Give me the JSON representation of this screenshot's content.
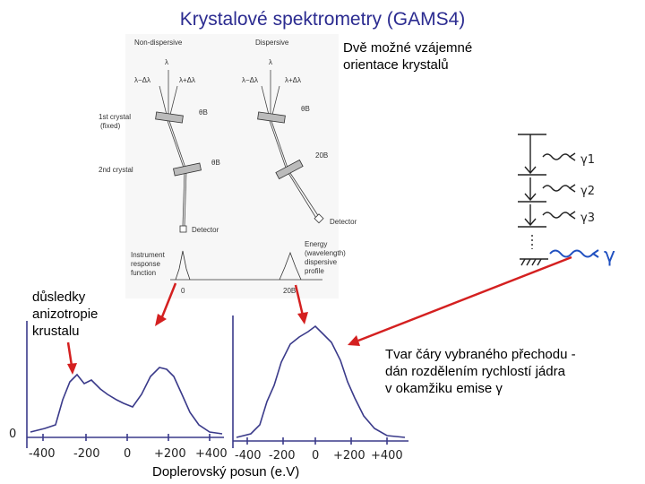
{
  "title": "Krystalové spektrometry (GAMS4)",
  "orientation_note": [
    "Dvě možné vzájemné",
    "orientace krystalů"
  ],
  "consequences_note": [
    "důsledky",
    "anizotropie",
    "krustalu"
  ],
  "line_shape_note": [
    "Tvar čáry vybraného přechodu -",
    "dán rozdělením rychlostí jádra",
    "v okamžiku emise γ"
  ],
  "doppler_label": "Doplerovský posun (e.V)",
  "diagram": {
    "non_dispersive": "Non-dispersive",
    "dispersive": "Dispersive",
    "lambda": "λ",
    "lambda_minus": "λ−Δλ",
    "lambda_plus": "λ+Δλ",
    "theta_b": "θB",
    "first_crystal": [
      "1st crystal",
      "(fixed)"
    ],
    "second_crystal": "2nd crystal",
    "two_theta_b": "20B",
    "detector": "Detector",
    "instrument_response": [
      "Instrument",
      "response",
      "function"
    ],
    "energy_profile": [
      "Energy",
      "(wavelength)",
      "dispersive",
      "profile"
    ],
    "axis_zero": "0",
    "axis_two_theta": "20B"
  },
  "plot_left_ticks": [
    "-400",
    "-200",
    "0",
    "+200",
    "+400"
  ],
  "plot_right_ticks": [
    "-400",
    "-200",
    "0",
    "+200",
    "+400"
  ],
  "plot_left_y_label": "0",
  "colors": {
    "title": "#2b2b90",
    "arrows": "#d42020",
    "pen": "#3a3a8a",
    "blue_ink": "#2050c0"
  }
}
